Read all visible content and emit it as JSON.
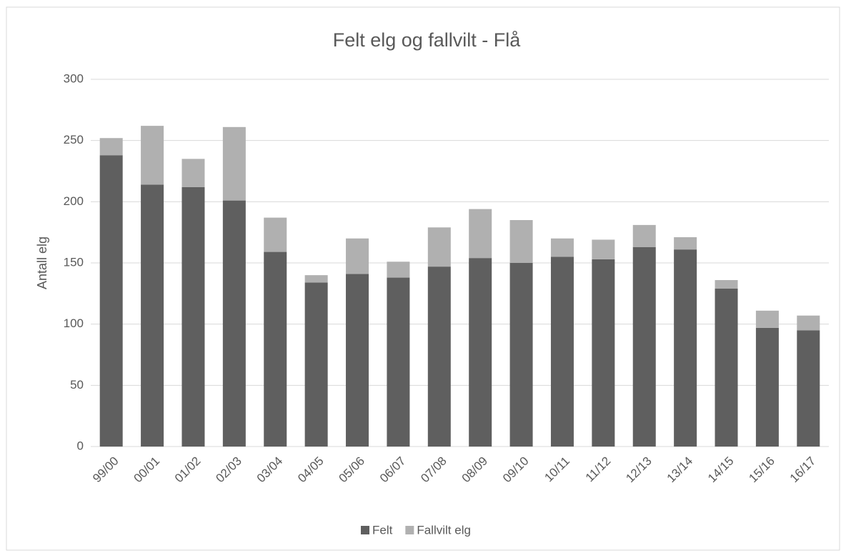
{
  "chart_data": {
    "type": "stacked_bar",
    "title": "Felt elg og fallvilt - Flå",
    "y_label": "Antall elg",
    "categories": [
      "99/00",
      "00/01",
      "01/02",
      "02/03",
      "03/04",
      "04/05",
      "05/06",
      "06/07",
      "07/08",
      "08/09",
      "09/10",
      "10/11",
      "11/12",
      "12/13",
      "13/14",
      "14/15",
      "15/16",
      "16/17"
    ],
    "series": [
      {
        "name": "Felt",
        "color": "#5f5f5f",
        "values": [
          238,
          214,
          212,
          201,
          159,
          134,
          141,
          138,
          147,
          154,
          150,
          155,
          153,
          163,
          161,
          129,
          97,
          95
        ]
      },
      {
        "name": "Fallvilt elg",
        "color": "#b0b0b0",
        "values": [
          14,
          48,
          23,
          60,
          28,
          6,
          29,
          13,
          32,
          40,
          35,
          15,
          16,
          18,
          10,
          7,
          14,
          12
        ]
      }
    ],
    "ylim": [
      0,
      300
    ],
    "yticks": [
      0,
      50,
      100,
      150,
      200,
      250,
      300
    ],
    "grid": true,
    "legend": "bottom"
  }
}
